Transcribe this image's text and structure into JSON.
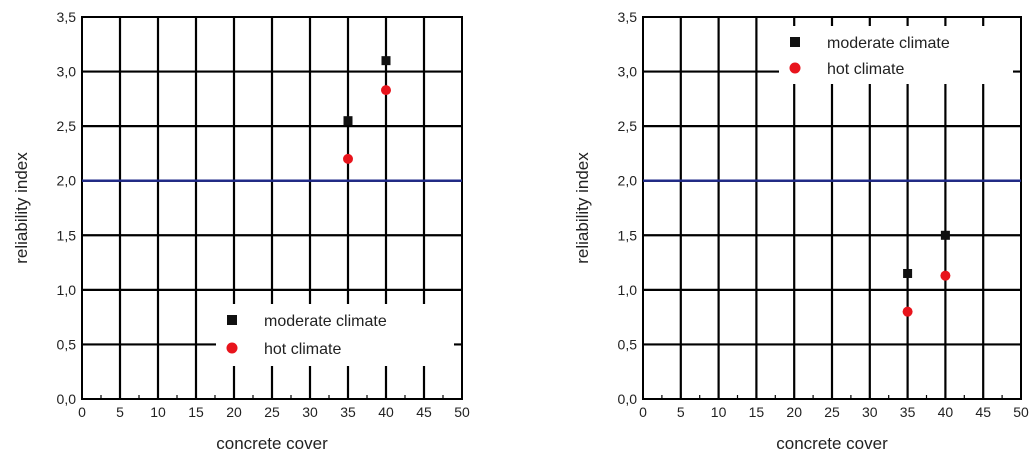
{
  "chart_data": [
    {
      "type": "scatter",
      "xlabel": "concrete cover",
      "ylabel": "reliability index",
      "xlim": [
        0,
        50
      ],
      "ylim": [
        0,
        3.5
      ],
      "xticks": [
        "0",
        "5",
        "10",
        "15",
        "20",
        "25",
        "30",
        "35",
        "40",
        "45",
        "50"
      ],
      "yticks": [
        "0,0",
        "0,5",
        "1,0",
        "1,5",
        "2,0",
        "2,5",
        "3,0",
        "3,5"
      ],
      "grid": true,
      "legend_position": "bottom-right",
      "reference_line": {
        "y": 2.0,
        "color": "#1f2a8a"
      },
      "series": [
        {
          "name": "moderate climate",
          "marker": "square",
          "color": "#111111",
          "x": [
            35,
            40
          ],
          "y": [
            2.55,
            3.1
          ]
        },
        {
          "name": "hot climate",
          "marker": "circle",
          "color": "#e8141c",
          "x": [
            35,
            40
          ],
          "y": [
            2.2,
            2.83
          ]
        }
      ]
    },
    {
      "type": "scatter",
      "xlabel": "concrete cover",
      "ylabel": "reliability index",
      "xlim": [
        0,
        50
      ],
      "ylim": [
        0,
        3.5
      ],
      "xticks": [
        "0",
        "5",
        "10",
        "15",
        "20",
        "25",
        "30",
        "35",
        "40",
        "45",
        "50"
      ],
      "yticks": [
        "0,0",
        "0,5",
        "1,0",
        "1,5",
        "2,0",
        "2,5",
        "3,0",
        "3,5"
      ],
      "grid": true,
      "legend_position": "top-right",
      "reference_line": {
        "y": 2.0,
        "color": "#1f2a8a"
      },
      "series": [
        {
          "name": "moderate climate",
          "marker": "square",
          "color": "#111111",
          "x": [
            35,
            40
          ],
          "y": [
            1.15,
            1.5
          ]
        },
        {
          "name": "hot climate",
          "marker": "circle",
          "color": "#e8141c",
          "x": [
            35,
            40
          ],
          "y": [
            0.8,
            1.13
          ]
        }
      ]
    }
  ]
}
